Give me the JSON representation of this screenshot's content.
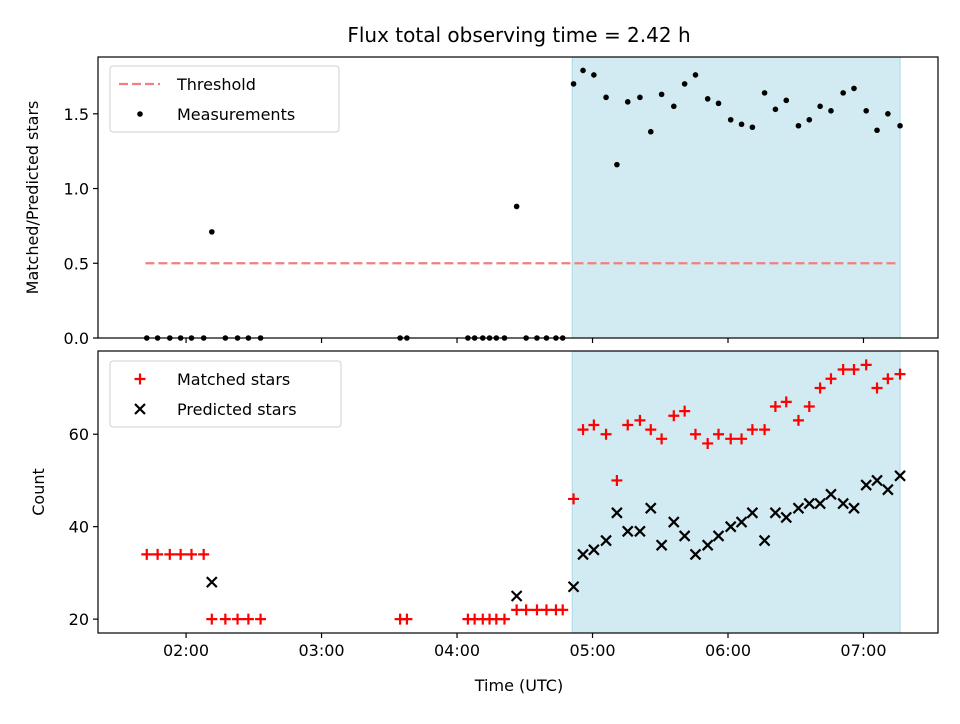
{
  "chart_data": {
    "title": "Flux total observing time = 2.42 h",
    "xlabel": "Time (UTC)",
    "x_unit": "hours",
    "x_range": [
      1.35,
      7.55
    ],
    "x_ticks": [
      {
        "value": 2,
        "label": "02:00"
      },
      {
        "value": 3,
        "label": "03:00"
      },
      {
        "value": 4,
        "label": "04:00"
      },
      {
        "value": 5,
        "label": "05:00"
      },
      {
        "value": 6,
        "label": "06:00"
      },
      {
        "value": 7,
        "label": "07:00"
      }
    ],
    "shaded_interval": {
      "start": 4.85,
      "end": 7.27,
      "color": "#add8e6"
    },
    "panels": [
      {
        "type": "scatter",
        "ylabel": "Matched/Predicted stars",
        "ylim": [
          0,
          1.88
        ],
        "y_ticks": [
          {
            "value": 0.0,
            "label": "0.0"
          },
          {
            "value": 0.5,
            "label": "0.5"
          },
          {
            "value": 1.0,
            "label": "1.0"
          },
          {
            "value": 1.5,
            "label": "1.5"
          }
        ],
        "threshold": {
          "name": "Threshold",
          "value": 0.5,
          "x": [
            1.7,
            7.25
          ],
          "color": "#f08080"
        },
        "series": [
          {
            "name": "Measurements",
            "marker": "dot",
            "color": "#000000",
            "x": [
              1.71,
              1.79,
              1.88,
              1.96,
              2.04,
              2.13,
              2.19,
              2.29,
              2.38,
              2.46,
              2.55,
              3.58,
              3.63,
              4.08,
              4.13,
              4.19,
              4.24,
              4.29,
              4.35,
              4.44,
              4.51,
              4.59,
              4.66,
              4.73,
              4.78,
              4.86,
              4.93,
              5.01,
              5.1,
              5.18,
              5.26,
              5.35,
              5.43,
              5.51,
              5.6,
              5.68,
              5.76,
              5.85,
              5.93,
              6.02,
              6.1,
              6.18,
              6.27,
              6.35,
              6.43,
              6.52,
              6.6,
              6.68,
              6.76,
              6.85,
              6.93,
              7.02,
              7.1,
              7.18,
              7.27
            ],
            "y": [
              0,
              0,
              0,
              0,
              0,
              0,
              0.71,
              0,
              0,
              0,
              0,
              0,
              0,
              0,
              0,
              0,
              0,
              0,
              0,
              0.88,
              0,
              0,
              0,
              0,
              0,
              1.7,
              1.79,
              1.76,
              1.61,
              1.16,
              1.58,
              1.61,
              1.38,
              1.63,
              1.55,
              1.7,
              1.76,
              1.6,
              1.57,
              1.46,
              1.43,
              1.41,
              1.64,
              1.53,
              1.59,
              1.42,
              1.46,
              1.55,
              1.52,
              1.64,
              1.67,
              1.52,
              1.39,
              1.5,
              1.42
            ]
          }
        ]
      },
      {
        "type": "scatter",
        "ylabel": "Count",
        "ylim": [
          17,
          78
        ],
        "y_ticks": [
          {
            "value": 20,
            "label": "20"
          },
          {
            "value": 40,
            "label": "40"
          },
          {
            "value": 60,
            "label": "60"
          }
        ],
        "series": [
          {
            "name": "Matched stars",
            "marker": "plus",
            "color": "#ff0000",
            "x": [
              1.71,
              1.79,
              1.88,
              1.96,
              2.04,
              2.13,
              2.19,
              2.29,
              2.38,
              2.46,
              2.55,
              3.58,
              3.63,
              4.08,
              4.13,
              4.19,
              4.24,
              4.29,
              4.35,
              4.44,
              4.51,
              4.59,
              4.66,
              4.73,
              4.78,
              4.86,
              4.93,
              5.01,
              5.1,
              5.18,
              5.26,
              5.35,
              5.43,
              5.51,
              5.6,
              5.68,
              5.76,
              5.85,
              5.93,
              6.02,
              6.1,
              6.18,
              6.27,
              6.35,
              6.43,
              6.52,
              6.6,
              6.68,
              6.76,
              6.85,
              6.93,
              7.02,
              7.1,
              7.18,
              7.27
            ],
            "y": [
              34,
              34,
              34,
              34,
              34,
              34,
              20,
              20,
              20,
              20,
              20,
              20,
              20,
              20,
              20,
              20,
              20,
              20,
              20,
              22,
              22,
              22,
              22,
              22,
              22,
              46,
              61,
              62,
              60,
              50,
              62,
              63,
              61,
              59,
              64,
              65,
              60,
              58,
              60,
              59,
              59,
              61,
              61,
              66,
              67,
              63,
              66,
              70,
              72,
              74,
              74,
              75,
              70,
              72,
              73
            ]
          },
          {
            "name": "Predicted stars",
            "marker": "cross",
            "color": "#000000",
            "x": [
              2.19,
              4.44,
              4.86,
              4.93,
              5.01,
              5.1,
              5.18,
              5.26,
              5.35,
              5.43,
              5.51,
              5.6,
              5.68,
              5.76,
              5.85,
              5.93,
              6.02,
              6.1,
              6.18,
              6.27,
              6.35,
              6.43,
              6.52,
              6.6,
              6.68,
              6.76,
              6.85,
              6.93,
              7.02,
              7.1,
              7.18,
              7.27
            ],
            "y": [
              28,
              25,
              27,
              34,
              35,
              37,
              43,
              39,
              39,
              44,
              36,
              41,
              38,
              34,
              36,
              38,
              40,
              41,
              43,
              37,
              43,
              42,
              44,
              45,
              45,
              47,
              45,
              44,
              49,
              50,
              48,
              51
            ]
          }
        ]
      }
    ]
  }
}
